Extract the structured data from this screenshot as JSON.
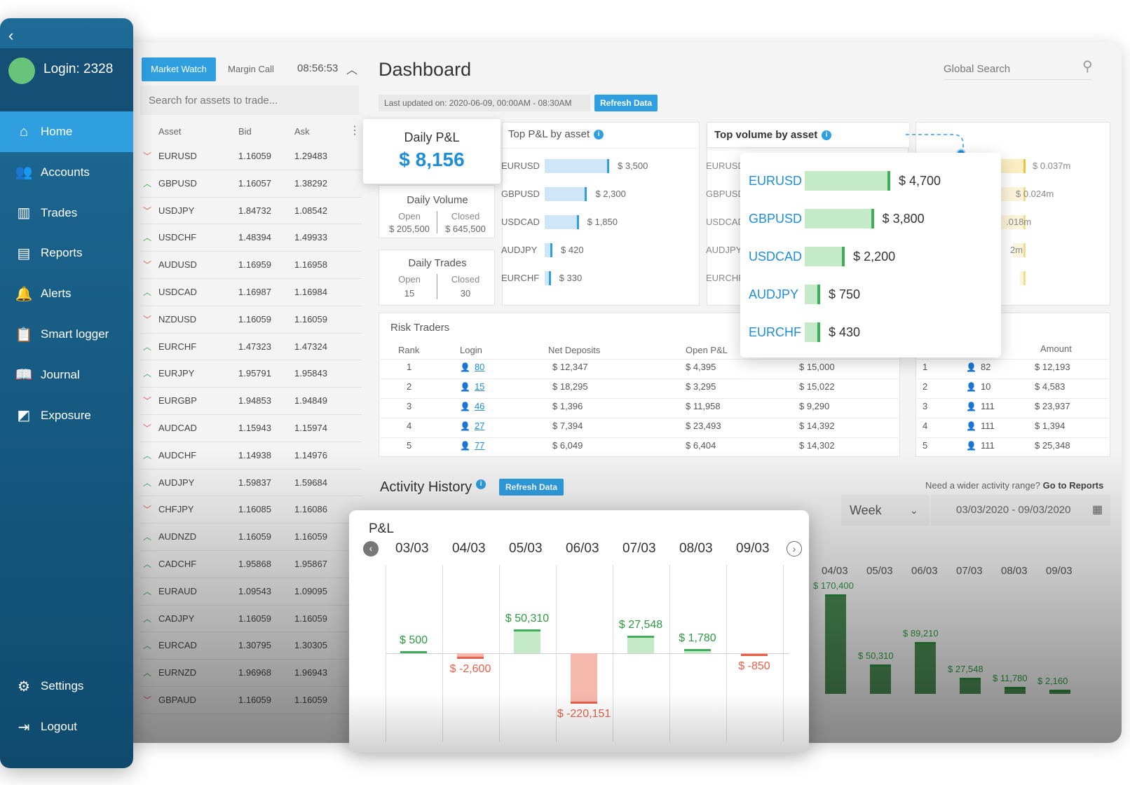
{
  "sidebar": {
    "login": "Login: 2328",
    "items": [
      {
        "label": "Home",
        "icon": "home-icon"
      },
      {
        "label": "Accounts",
        "icon": "accounts-icon"
      },
      {
        "label": "Trades",
        "icon": "trades-icon"
      },
      {
        "label": "Reports",
        "icon": "reports-icon"
      },
      {
        "label": "Alerts",
        "icon": "bell-icon"
      },
      {
        "label": "Smart logger",
        "icon": "clipboard-icon"
      },
      {
        "label": "Journal",
        "icon": "book-icon"
      },
      {
        "label": "Exposure",
        "icon": "exposure-icon"
      }
    ],
    "settings": "Settings",
    "logout": "Logout"
  },
  "market_watch": {
    "tab_market_watch": "Market Watch",
    "tab_margin_call": "Margin Call",
    "time": "08:56:53",
    "search_placeholder": "Search for assets to trade...",
    "headers": {
      "asset": "Asset",
      "bid": "Bid",
      "ask": "Ask"
    },
    "rows": [
      {
        "dir": "down",
        "asset": "EURUSD",
        "bid": "1.16059",
        "ask": "1.29483"
      },
      {
        "dir": "up",
        "asset": "GBPUSD",
        "bid": "1.16057",
        "ask": "1.38292"
      },
      {
        "dir": "down",
        "asset": "USDJPY",
        "bid": "1.84732",
        "ask": "1.08542"
      },
      {
        "dir": "up",
        "asset": "USDCHF",
        "bid": "1.48394",
        "ask": "1.49933"
      },
      {
        "dir": "down",
        "asset": "AUDUSD",
        "bid": "1.16959",
        "ask": "1.16958"
      },
      {
        "dir": "up",
        "asset": "USDCAD",
        "bid": "1.16987",
        "ask": "1.16984"
      },
      {
        "dir": "down",
        "asset": "NZDUSD",
        "bid": "1.16059",
        "ask": "1.16059"
      },
      {
        "dir": "up",
        "asset": "EURCHF",
        "bid": "1.47323",
        "ask": "1.47324"
      },
      {
        "dir": "up",
        "asset": "EURJPY",
        "bid": "1.95791",
        "ask": "1.95843"
      },
      {
        "dir": "down",
        "asset": "EURGBP",
        "bid": "1.94853",
        "ask": "1.94849"
      },
      {
        "dir": "down",
        "asset": "AUDCAD",
        "bid": "1.15943",
        "ask": "1.15974"
      },
      {
        "dir": "up",
        "asset": "AUDCHF",
        "bid": "1.14938",
        "ask": "1.14976"
      },
      {
        "dir": "up",
        "asset": "AUDJPY",
        "bid": "1.59837",
        "ask": "1.59684"
      },
      {
        "dir": "down",
        "asset": "CHFJPY",
        "bid": "1.16085",
        "ask": "1.16086"
      },
      {
        "dir": "up",
        "asset": "AUDNZD",
        "bid": "1.16059",
        "ask": "1.16059"
      },
      {
        "dir": "up",
        "asset": "CADCHF",
        "bid": "1.95868",
        "ask": "1.95867"
      },
      {
        "dir": "up",
        "asset": "EURAUD",
        "bid": "1.09543",
        "ask": "1.09095"
      },
      {
        "dir": "up",
        "asset": "CADJPY",
        "bid": "1.16059",
        "ask": "1.16059"
      },
      {
        "dir": "up",
        "asset": "EURCAD",
        "bid": "1.30795",
        "ask": "1.30305"
      },
      {
        "dir": "up",
        "asset": "EURNZD",
        "bid": "1.96968",
        "ask": "1.96943"
      },
      {
        "dir": "down",
        "asset": "GBPAUD",
        "bid": "1.16059",
        "ask": "1.16059"
      }
    ]
  },
  "dashboard": {
    "title": "Dashboard",
    "global_search_placeholder": "Global Search",
    "last_updated": "Last updated on: 2020-06-09, 00:00AM - 08:30AM",
    "refresh": "Refresh Data",
    "daily_pnl": {
      "title": "Daily P&L",
      "value": "$ 8,156"
    },
    "daily_volume": {
      "title": "Daily Volume",
      "open_label": "Open",
      "closed_label": "Closed",
      "open": "$ 205,500",
      "closed": "$ 645,500"
    },
    "daily_trades": {
      "title": "Daily Trades",
      "open_label": "Open",
      "closed_label": "Closed",
      "open": "15",
      "closed": "30"
    },
    "top_pnl": {
      "title": "Top P&L by asset",
      "items": [
        {
          "asset": "EURUSD",
          "label": "$ 3,500",
          "value": 3500
        },
        {
          "asset": "GBPUSD",
          "label": "$ 2,300",
          "value": 2300
        },
        {
          "asset": "USDCAD",
          "label": "$ 1,850",
          "value": 1850
        },
        {
          "asset": "AUDJPY",
          "label": "$ 420",
          "value": 420
        },
        {
          "asset": "EURCHF",
          "label": "$ 330",
          "value": 330
        }
      ]
    },
    "top_volume": {
      "title": "Top volume by asset",
      "items": [
        {
          "asset": "EURUSD",
          "label": "$ 4,700",
          "value": 4700
        },
        {
          "asset": "GBPUSD",
          "label": "$ 3,800",
          "value": 3800
        },
        {
          "asset": "USDCAD",
          "label": "$ 2,200",
          "value": 2200
        },
        {
          "asset": "AUDJPY",
          "label": "$ 750",
          "value": 750
        },
        {
          "asset": "EURCHF",
          "label": "$ 430",
          "value": 430
        }
      ],
      "behind_assets": [
        "EURUSD",
        "GBPUSD",
        "USDCAD",
        "AUDJPY",
        "EURCHF"
      ]
    },
    "side_values": [
      "$ 0.037m",
      "$ 0.024m",
      ".018m",
      "2m"
    ],
    "risk_traders": {
      "title": "Risk Traders",
      "headers": {
        "rank": "Rank",
        "login": "Login",
        "net_deposits": "Net Deposits",
        "open_pnl": "Open P&L"
      },
      "rows": [
        {
          "rank": "1",
          "login": "80",
          "net": "$ 12,347",
          "open": "$ 4,395",
          "extra": "$ 15,000"
        },
        {
          "rank": "2",
          "login": "15",
          "net": "$ 18,295",
          "open": "$ 3,295",
          "extra": "$ 15,022"
        },
        {
          "rank": "3",
          "login": "46",
          "net": "$ 1,396",
          "open": "$ 11,958",
          "extra": "$ 9,290"
        },
        {
          "rank": "4",
          "login": "27",
          "net": "$ 7,394",
          "open": "$ 23,493",
          "extra": "$ 14,392"
        },
        {
          "rank": "5",
          "login": "77",
          "net": "$ 6,049",
          "open": "$ 6,404",
          "extra": "$ 14,302"
        }
      ]
    },
    "side_table": {
      "header_amount": "Amount",
      "rows": [
        {
          "rank": "1",
          "login": "82",
          "amount": "$ 12,193"
        },
        {
          "rank": "2",
          "login": "10",
          "amount": "$ 4,583"
        },
        {
          "rank": "3",
          "login": "111",
          "amount": "$ 23,937"
        },
        {
          "rank": "4",
          "login": "111",
          "amount": "$ 1,394"
        },
        {
          "rank": "5",
          "login": "111",
          "amount": "$ 25,348"
        }
      ]
    },
    "activity": {
      "title": "Activity History",
      "need_wider": "Need a wider activity range?",
      "go_reports": "Go to Reports",
      "period": "Week",
      "range": "03/03/2020 - 09/03/2020"
    }
  },
  "chart_data": [
    {
      "type": "bar",
      "title": "P&L",
      "categories": [
        "03/03",
        "04/03",
        "05/03",
        "06/03",
        "07/03",
        "08/03",
        "09/03"
      ],
      "values": [
        500,
        -2600,
        50310,
        -220151,
        27548,
        1780,
        -850
      ],
      "labels": [
        "$ 500",
        "$ -2,600",
        "$ 50,310",
        "$ -220,151",
        "$ 27,548",
        "$ 1,780",
        "$ -850"
      ]
    },
    {
      "type": "bar",
      "categories": [
        "04/03",
        "05/03",
        "06/03",
        "07/03",
        "08/03",
        "09/03"
      ],
      "values": [
        170400,
        50310,
        89210,
        27548,
        11780,
        2160
      ],
      "labels": [
        "$ 170,400",
        "$ 50,310",
        "$ 89,210",
        "$ 27,548",
        "$ 11,780",
        "$ 2,160"
      ]
    }
  ],
  "colors": {
    "accent": "#2f9fe0",
    "positive": "#3eae5a",
    "negative": "#e8604a",
    "sidebar": "#1a5f88"
  }
}
